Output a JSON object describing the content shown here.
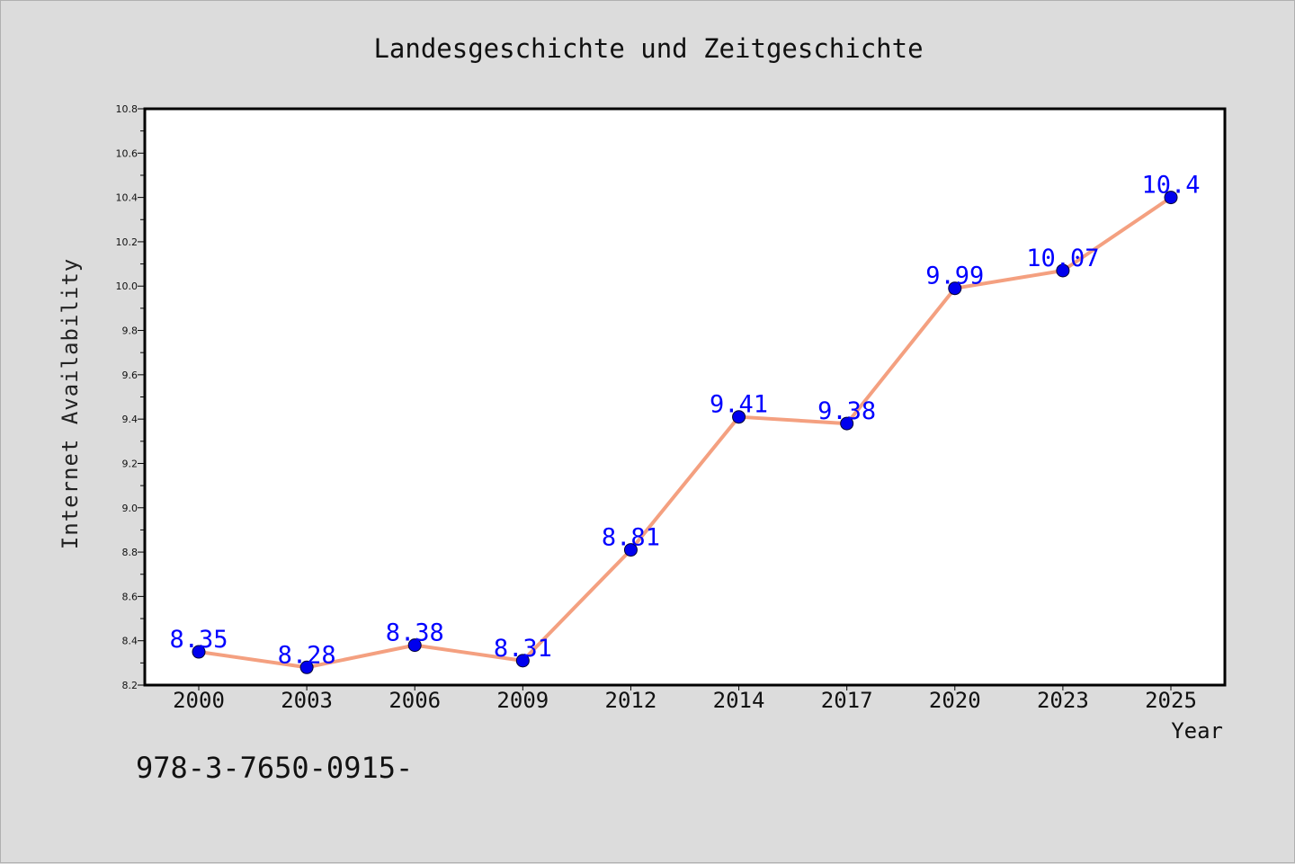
{
  "chart_data": {
    "type": "line",
    "title": "Landesgeschichte und Zeitgeschichte",
    "xlabel": "Year",
    "ylabel": "Internet Availability",
    "categories": [
      "2000",
      "2003",
      "2006",
      "2009",
      "2012",
      "2014",
      "2017",
      "2020",
      "2023",
      "2025"
    ],
    "series": [
      {
        "values": [
          8.35,
          8.28,
          8.38,
          8.31,
          8.81,
          9.41,
          9.38,
          9.99,
          10.07,
          10.4
        ],
        "data_labels": [
          "8.35",
          "8.28",
          "8.38",
          "8.31",
          "8.81",
          "9.41",
          "9.38",
          "9.99",
          "10.07",
          "10.4"
        ],
        "line_color": "#f4a080",
        "marker_color": "#0000ee",
        "label_color": "#0000ff"
      }
    ],
    "ylim": [
      8.2,
      10.8
    ],
    "yticks": [
      "8.2",
      "8.4",
      "8.6",
      "8.8",
      "9.0",
      "9.2",
      "9.4",
      "9.6",
      "9.8",
      "10.0",
      "10.2",
      "10.4",
      "10.6",
      "10.8"
    ],
    "grid": false,
    "legend": "none"
  },
  "footer": {
    "text": "978-3-7650-0915-"
  }
}
